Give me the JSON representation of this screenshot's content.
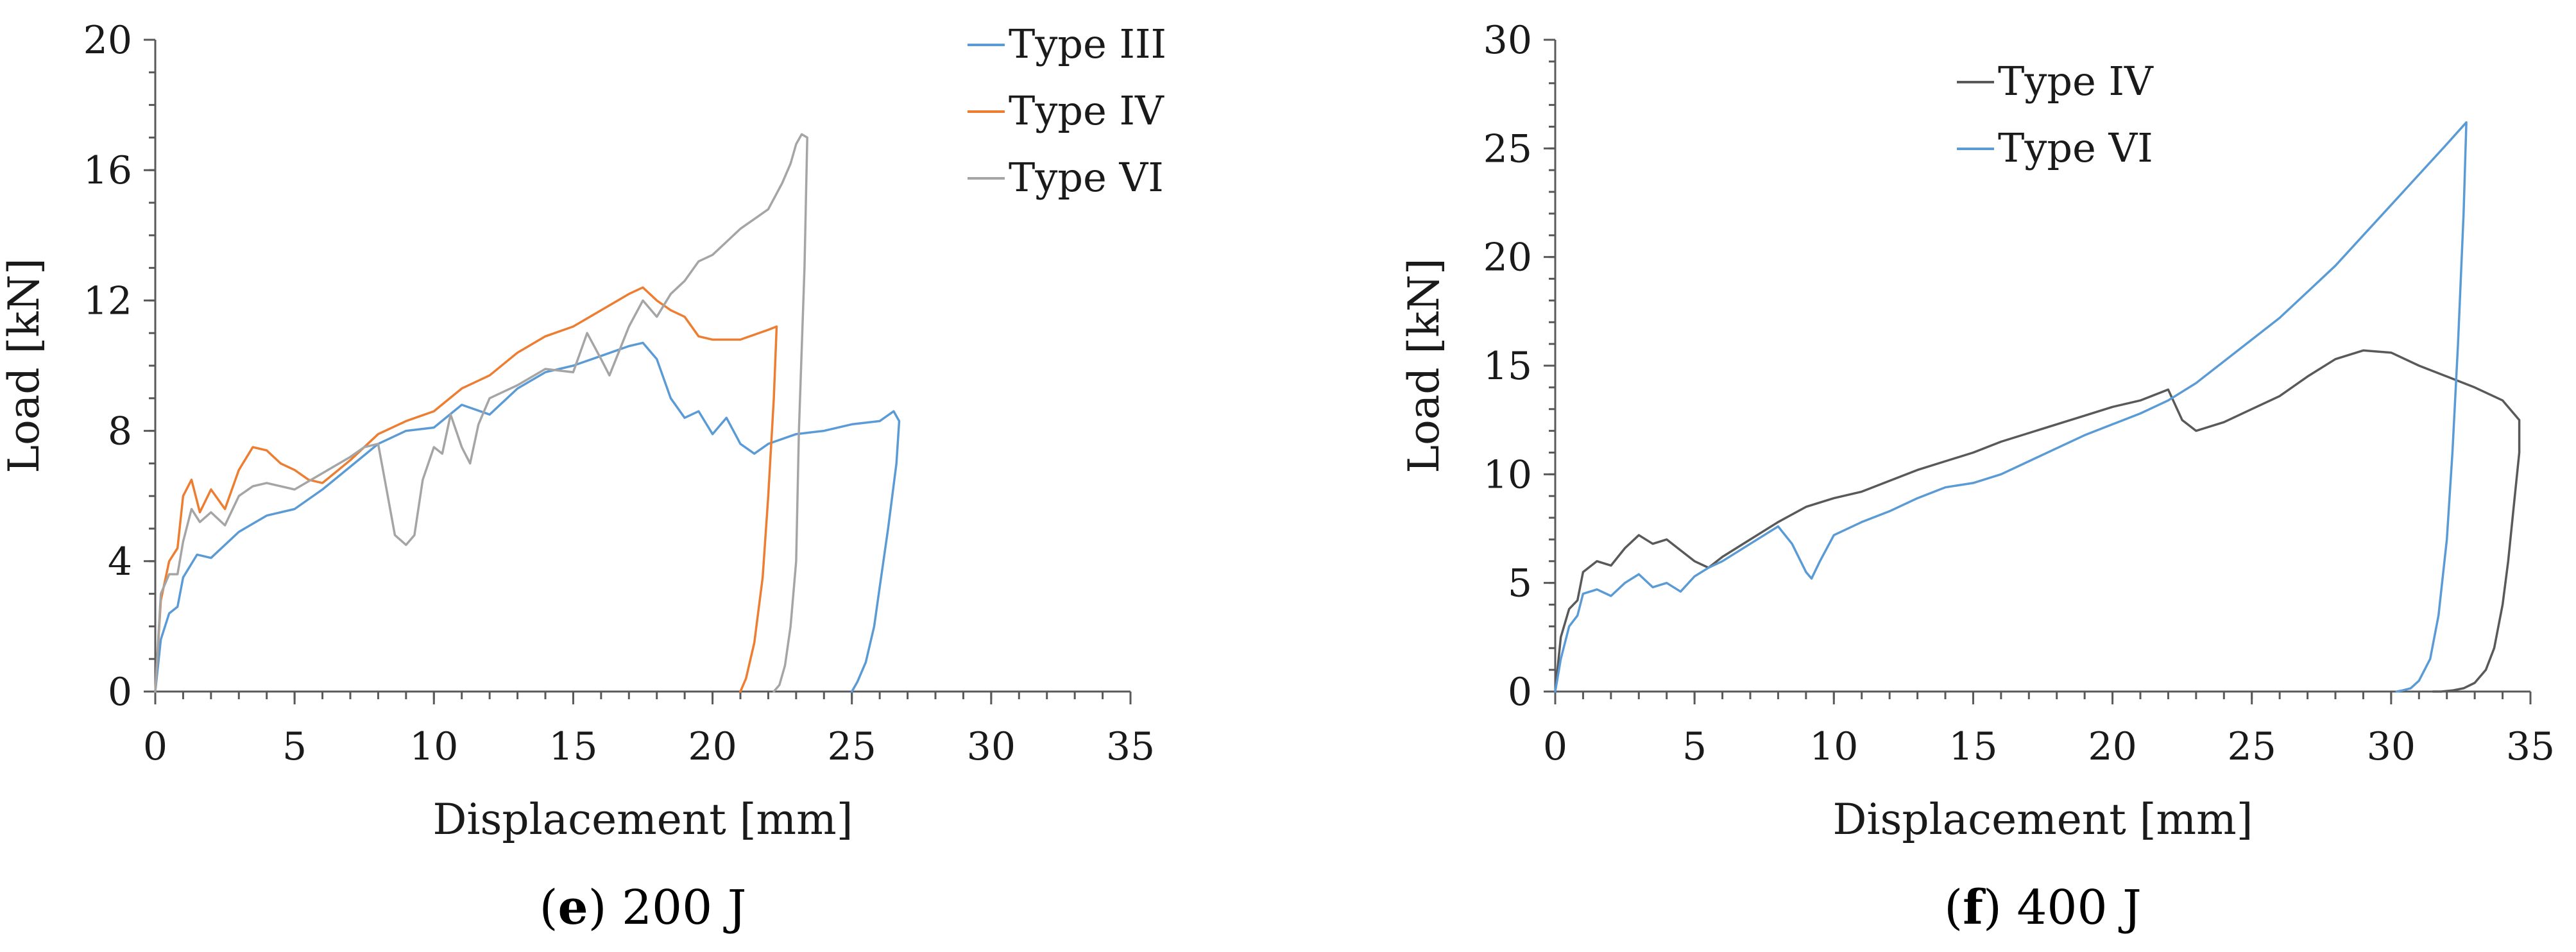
{
  "chart_data": [
    {
      "type": "line",
      "caption": {
        "letter": "e",
        "text": "200 J"
      },
      "xlabel": "Displacement [mm]",
      "ylabel": "Load [kN]",
      "xlim": [
        0,
        35
      ],
      "ylim": [
        0,
        20
      ],
      "xticks": [
        0,
        5,
        10,
        15,
        20,
        25,
        30,
        35
      ],
      "yticks": [
        0,
        4,
        8,
        12,
        16,
        20
      ],
      "xticks_minor": 1,
      "legend": "top-right",
      "series": [
        {
          "name": "Type III",
          "color": "#5b9bd5",
          "x": [
            0,
            0.2,
            0.5,
            0.8,
            1,
            1.5,
            2,
            3,
            4,
            5,
            6,
            7,
            8,
            9,
            10,
            11,
            12,
            13,
            14,
            15,
            16,
            17,
            17.5,
            18,
            18.5,
            19,
            19.5,
            20,
            20.5,
            21,
            21.5,
            22,
            23,
            24,
            25,
            26,
            26.5,
            26.7,
            26.6,
            26.3,
            26,
            25.8,
            25.5,
            25.2,
            25
          ],
          "y": [
            0,
            1.6,
            2.4,
            2.6,
            3.5,
            4.2,
            4.1,
            4.9,
            5.4,
            5.6,
            6.2,
            6.9,
            7.6,
            8.0,
            8.1,
            8.8,
            8.5,
            9.3,
            9.8,
            10.0,
            10.3,
            10.6,
            10.7,
            10.2,
            9.0,
            8.4,
            8.6,
            7.9,
            8.4,
            7.6,
            7.3,
            7.6,
            7.9,
            8.0,
            8.2,
            8.3,
            8.6,
            8.3,
            7.0,
            5.0,
            3.2,
            2.0,
            0.9,
            0.3,
            0
          ],
          "reference_only": "unloading branch returns to zero near 25 mm"
        },
        {
          "name": "Type IV",
          "color": "#ed7d31",
          "x": [
            0,
            0.2,
            0.5,
            0.8,
            1,
            1.3,
            1.6,
            2,
            2.5,
            3,
            3.5,
            4,
            4.5,
            5,
            5.5,
            6,
            7,
            8,
            9,
            10,
            11,
            12,
            13,
            14,
            15,
            16,
            17,
            17.5,
            18,
            18.5,
            19,
            19.5,
            20,
            21,
            22,
            22.3,
            22.2,
            22,
            21.8,
            21.5,
            21.2,
            21
          ],
          "y": [
            0,
            2.8,
            4.0,
            4.4,
            6.0,
            6.5,
            5.5,
            6.2,
            5.6,
            6.8,
            7.5,
            7.4,
            7.0,
            6.8,
            6.5,
            6.4,
            7.1,
            7.9,
            8.3,
            8.6,
            9.3,
            9.7,
            10.4,
            10.9,
            11.2,
            11.7,
            12.2,
            12.4,
            12.0,
            11.7,
            11.5,
            10.9,
            10.8,
            10.8,
            11.1,
            11.2,
            9.0,
            6.0,
            3.5,
            1.5,
            0.4,
            0
          ]
        },
        {
          "name": "Type VI",
          "color": "#a5a5a5",
          "x": [
            0,
            0.2,
            0.5,
            0.8,
            1,
            1.3,
            1.6,
            2,
            2.5,
            3,
            3.5,
            4,
            5,
            6,
            7,
            7.5,
            8,
            8.3,
            8.6,
            9,
            9.3,
            9.6,
            10,
            10.3,
            10.6,
            11,
            11.3,
            11.6,
            12,
            12.5,
            13,
            14,
            15,
            15.5,
            16,
            16.3,
            17,
            17.5,
            18,
            18.5,
            19,
            19.5,
            20,
            20.5,
            21,
            21.5,
            22,
            22.5,
            22.8,
            23,
            23.2,
            23.4,
            23.3,
            23.1,
            23,
            22.8,
            22.6,
            22.4,
            22.2
          ],
          "y": [
            0,
            3.0,
            3.6,
            3.6,
            4.6,
            5.6,
            5.2,
            5.5,
            5.1,
            6.0,
            6.3,
            6.4,
            6.2,
            6.7,
            7.2,
            7.5,
            7.6,
            6.2,
            4.8,
            4.5,
            4.8,
            6.5,
            7.5,
            7.3,
            8.5,
            7.5,
            7.0,
            8.2,
            9.0,
            9.2,
            9.4,
            9.9,
            9.8,
            11.0,
            10.2,
            9.7,
            11.2,
            12.0,
            11.5,
            12.2,
            12.6,
            13.2,
            13.4,
            13.8,
            14.2,
            14.5,
            14.8,
            15.6,
            16.2,
            16.8,
            17.1,
            17.0,
            13.0,
            8.0,
            4.0,
            2.0,
            0.8,
            0.2,
            0
          ]
        }
      ]
    },
    {
      "type": "line",
      "caption": {
        "letter": "f",
        "text": "400 J"
      },
      "xlabel": "Displacement [mm]",
      "ylabel": "Load [kN]",
      "xlim": [
        0,
        35
      ],
      "ylim": [
        0,
        30
      ],
      "xticks": [
        0,
        5,
        10,
        15,
        20,
        25,
        30,
        35
      ],
      "yticks": [
        0,
        5,
        10,
        15,
        20,
        25,
        30
      ],
      "xticks_minor": 1,
      "legend": "top-center",
      "series": [
        {
          "name": "Type IV",
          "color": "#595959",
          "x": [
            0,
            0.2,
            0.5,
            0.8,
            1,
            1.5,
            2,
            2.5,
            3,
            3.5,
            4,
            4.5,
            5,
            5.5,
            6,
            7,
            8,
            9,
            10,
            11,
            12,
            13,
            14,
            15,
            16,
            17,
            18,
            19,
            20,
            21,
            22,
            22.5,
            23,
            24,
            25,
            26,
            27,
            28,
            29,
            30,
            31,
            32,
            33,
            34,
            34.6,
            34.6,
            34.4,
            34.2,
            34,
            33.7,
            33.4,
            33,
            32.6,
            32.2,
            31.8,
            31.5
          ],
          "y": [
            0,
            2.5,
            3.8,
            4.2,
            5.5,
            6.0,
            5.8,
            6.6,
            7.2,
            6.8,
            7.0,
            6.5,
            6.0,
            5.7,
            6.2,
            7.0,
            7.8,
            8.5,
            8.9,
            9.2,
            9.7,
            10.2,
            10.6,
            11.0,
            11.5,
            11.9,
            12.3,
            12.7,
            13.1,
            13.4,
            13.9,
            12.5,
            12.0,
            12.4,
            13.0,
            13.6,
            14.5,
            15.3,
            15.7,
            15.6,
            15.0,
            14.5,
            14.0,
            13.4,
            12.5,
            11.0,
            8.5,
            6.0,
            4.0,
            2.0,
            1.0,
            0.4,
            0.15,
            0.05,
            0,
            0
          ]
        },
        {
          "name": "Type VI",
          "color": "#5b9bd5",
          "x": [
            0,
            0.2,
            0.5,
            0.8,
            1,
            1.5,
            2,
            2.5,
            3,
            3.5,
            4,
            4.5,
            5,
            5.5,
            6,
            7,
            8,
            8.5,
            9,
            9.2,
            9.5,
            10,
            11,
            12,
            13,
            14,
            15,
            16,
            17,
            18,
            19,
            20,
            21,
            22,
            23,
            24,
            25,
            26,
            27,
            28,
            29,
            30,
            31,
            32,
            32.7,
            32.6,
            32.4,
            32.2,
            32,
            31.7,
            31.4,
            31,
            30.7,
            30.4,
            30.2
          ],
          "y": [
            0,
            1.5,
            3.0,
            3.5,
            4.5,
            4.7,
            4.4,
            5.0,
            5.4,
            4.8,
            5.0,
            4.6,
            5.3,
            5.7,
            6.0,
            6.8,
            7.6,
            6.8,
            5.5,
            5.2,
            6.0,
            7.2,
            7.8,
            8.3,
            8.9,
            9.4,
            9.6,
            10.0,
            10.6,
            11.2,
            11.8,
            12.3,
            12.8,
            13.4,
            14.2,
            15.2,
            16.2,
            17.2,
            18.4,
            19.6,
            21.0,
            22.4,
            23.8,
            25.2,
            26.2,
            22.0,
            16.0,
            11.0,
            7.0,
            3.5,
            1.5,
            0.5,
            0.15,
            0.05,
            0
          ]
        }
      ]
    }
  ]
}
